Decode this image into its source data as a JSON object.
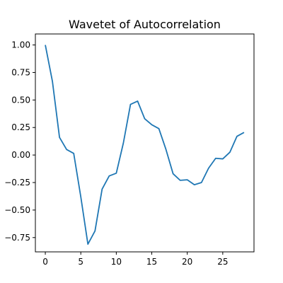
{
  "chart_data": {
    "type": "line",
    "title": "Wavetet of Autocorrelation",
    "xlabel": "",
    "ylabel": "",
    "xlim": [
      -1.4,
      29.4
    ],
    "ylim": [
      -0.88,
      1.1
    ],
    "xticks": [
      0,
      5,
      10,
      15,
      20,
      25
    ],
    "yticks": [
      1.0,
      0.75,
      0.5,
      0.25,
      0.0,
      -0.25,
      -0.5,
      -0.75
    ],
    "xtick_labels": [
      "0",
      "5",
      "10",
      "15",
      "20",
      "25"
    ],
    "ytick_labels": [
      "1.00",
      "0.75",
      "0.50",
      "0.25",
      "0.00",
      "−0.25",
      "−0.50",
      "−0.75"
    ],
    "grid": false,
    "series": [
      {
        "color": "#1f77b4",
        "x": [
          0,
          1,
          2,
          3,
          4,
          5,
          6,
          7,
          8,
          9,
          10,
          11,
          12,
          13,
          14,
          15,
          16,
          17,
          18,
          19,
          20,
          21,
          22,
          23,
          24,
          25,
          26,
          27,
          28
        ],
        "y": [
          1.0,
          0.67,
          0.16,
          0.05,
          0.015,
          -0.38,
          -0.81,
          -0.69,
          -0.31,
          -0.19,
          -0.165,
          0.11,
          0.46,
          0.49,
          0.33,
          0.275,
          0.24,
          0.05,
          -0.17,
          -0.23,
          -0.225,
          -0.27,
          -0.25,
          -0.12,
          -0.03,
          -0.035,
          0.025,
          0.17,
          0.205
        ]
      }
    ]
  }
}
